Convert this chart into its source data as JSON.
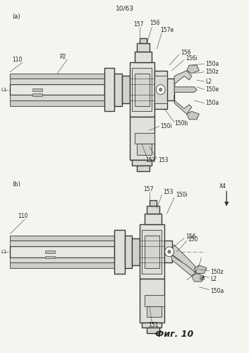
{
  "title": "10/63",
  "fig_label": "Фиг. 10",
  "bg_color": "#f5f5f0",
  "line_color": "#3a3a3a",
  "label_color": "#222222",
  "panel_a_label": "(a)",
  "panel_b_label": "(b)",
  "figsize": [
    3.53,
    4.99
  ],
  "dpi": 100
}
